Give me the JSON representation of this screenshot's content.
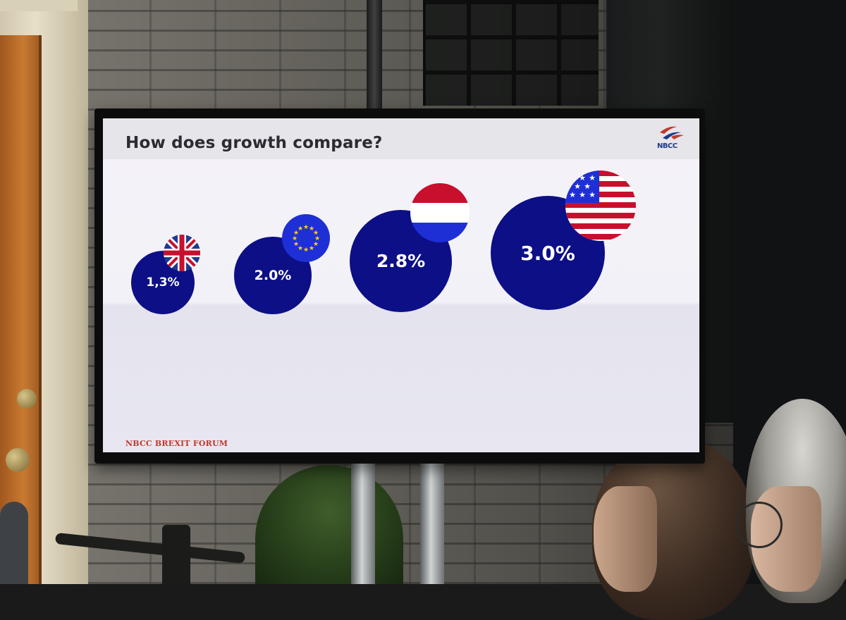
{
  "slide": {
    "title": "How does growth compare?",
    "logo_text": "NBCC",
    "footer": "NBCC BREXIT FORUM"
  },
  "bubbles": [
    {
      "label": "1,3%",
      "flag": "uk-flag-icon"
    },
    {
      "label": "2.0%",
      "flag": "eu-flag-icon"
    },
    {
      "label": "2.8%",
      "flag": "netherlands-flag-icon"
    },
    {
      "label": "3.0%",
      "flag": "us-flag-icon"
    }
  ],
  "colors": {
    "bubble": "#0d0f86",
    "footer": "#c0392b",
    "title": "#2b2b33"
  }
}
